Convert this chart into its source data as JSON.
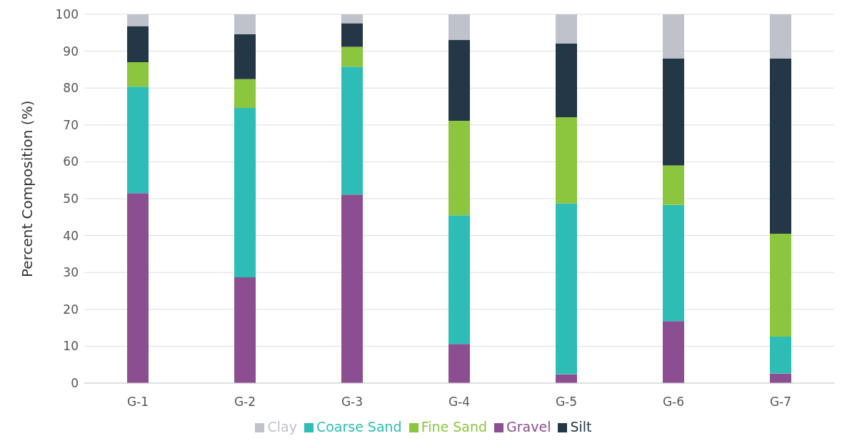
{
  "chart_data": {
    "type": "bar",
    "stacked": true,
    "ylabel": "Percent Composition (%)",
    "categories": [
      "G-1",
      "G-2",
      "G-3",
      "G-4",
      "G-5",
      "G-6",
      "G-7"
    ],
    "series": [
      {
        "name": "Gravel",
        "color": "#8b4f91",
        "values": [
          51.5,
          28.7,
          51.1,
          10.6,
          2.4,
          16.8,
          2.6
        ]
      },
      {
        "name": "Coarse Sand",
        "color": "#2dbdb6",
        "values": [
          28.9,
          45.9,
          34.7,
          34.9,
          46.3,
          31.5,
          10.0
        ]
      },
      {
        "name": "Fine Sand",
        "color": "#8cc63f",
        "values": [
          6.6,
          7.8,
          5.4,
          25.6,
          23.4,
          10.7,
          27.9
        ]
      },
      {
        "name": "Silt",
        "color": "#243746",
        "values": [
          9.8,
          12.2,
          6.4,
          21.9,
          20.0,
          29.0,
          47.5
        ]
      },
      {
        "name": "Clay",
        "color": "#c0c2cb",
        "values": [
          3.2,
          5.4,
          2.4,
          7.0,
          8.0,
          12.0,
          12.0
        ]
      }
    ],
    "ylim": [
      0,
      100
    ],
    "yticks": [
      0,
      10,
      20,
      30,
      40,
      50,
      60,
      70,
      80,
      90,
      100
    ],
    "grid": "y",
    "legend": "bottom"
  }
}
